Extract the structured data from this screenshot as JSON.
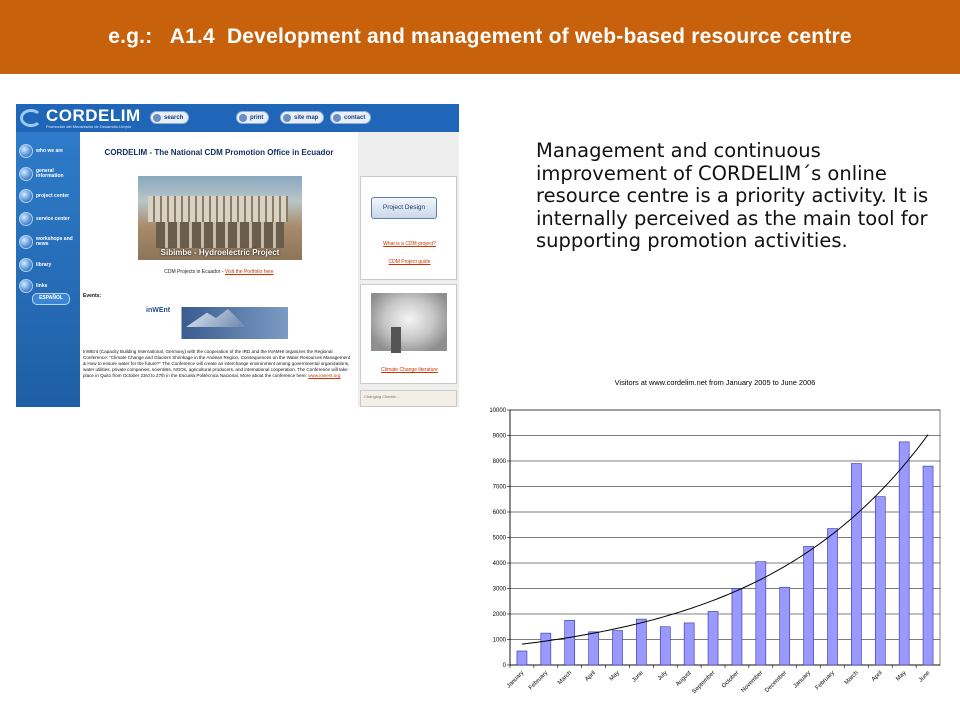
{
  "header": {
    "title": "e.g.:   A1.4  Development and management of web-based resource centre"
  },
  "site": {
    "logo_text": "CORDELIM",
    "logo_sub": "Promoción del Mecanismo de Desarrollo Limpio",
    "topnav": [
      "search",
      "print",
      "site map",
      "contact"
    ],
    "sidebar": [
      "who we are",
      "general information",
      "project center",
      "service center",
      "workshops and news",
      "library",
      "links"
    ],
    "espanol": "ESPAÑOL",
    "title": "CORDELIM - The National CDM Promotion Office in Ecuador",
    "photo_caption": "Sibimbe - Hydroelectric Project",
    "cdm_projects_text": "CDM Projects in Ecuador - ",
    "cdm_projects_link": "Visit the Portfolio here",
    "events_label": "Events:",
    "inwent_logo": "inWEnt",
    "inwent_text": "InWEnt (Capacity Building International, Germany) with the cooperation of the IRD and the INAMHI organizes the Regional Conference: \"Climate Change and Glaciers Shrinkage in the Andean Region, Consequences on the Water Resources Management & How to ensure water for the future?\" The Conference will create an interchange environment among governmental organizations, water utilities, private companies, scientists, NGOs, agricultural producers, and international cooperation. The Conference will take place in Quito from October 23rd to 27th in the Escuela Politécnica Nacional. More about the conference here: ",
    "inwent_link": "www.inwent.org",
    "project_design_button": "Project Design",
    "what_is_cdm_link": "What is a CDM project?",
    "cdm_guide_link": "CDM Project guide",
    "climate_lit_link": "Climate Change literature",
    "bottom_card_text": "Changing Climate..."
  },
  "description": "Management and continuous improvement of CORDELIM´s online resource centre is a priority activity. It is internally perceived as the main tool for supporting promotion activities.",
  "chart_data": {
    "type": "bar",
    "title": "Visitors at www.cordelim.net from January 2005 to June 2006",
    "categories": [
      "January",
      "February",
      "March",
      "April",
      "May",
      "June",
      "July",
      "August",
      "September",
      "October",
      "November",
      "December",
      "January",
      "February",
      "March",
      "April",
      "May",
      "June"
    ],
    "values": [
      550,
      1250,
      1750,
      1300,
      1350,
      1800,
      1500,
      1650,
      2100,
      3000,
      4050,
      3050,
      4650,
      5350,
      7900,
      6600,
      8750,
      7800
    ],
    "trendline": "exponential",
    "ylim": [
      0,
      10000
    ],
    "yticks": [
      0,
      1000,
      2000,
      3000,
      4000,
      5000,
      6000,
      7000,
      8000,
      9000,
      10000
    ],
    "grid": true,
    "bar_color": "#9999ff",
    "xlabel": "",
    "ylabel": ""
  }
}
